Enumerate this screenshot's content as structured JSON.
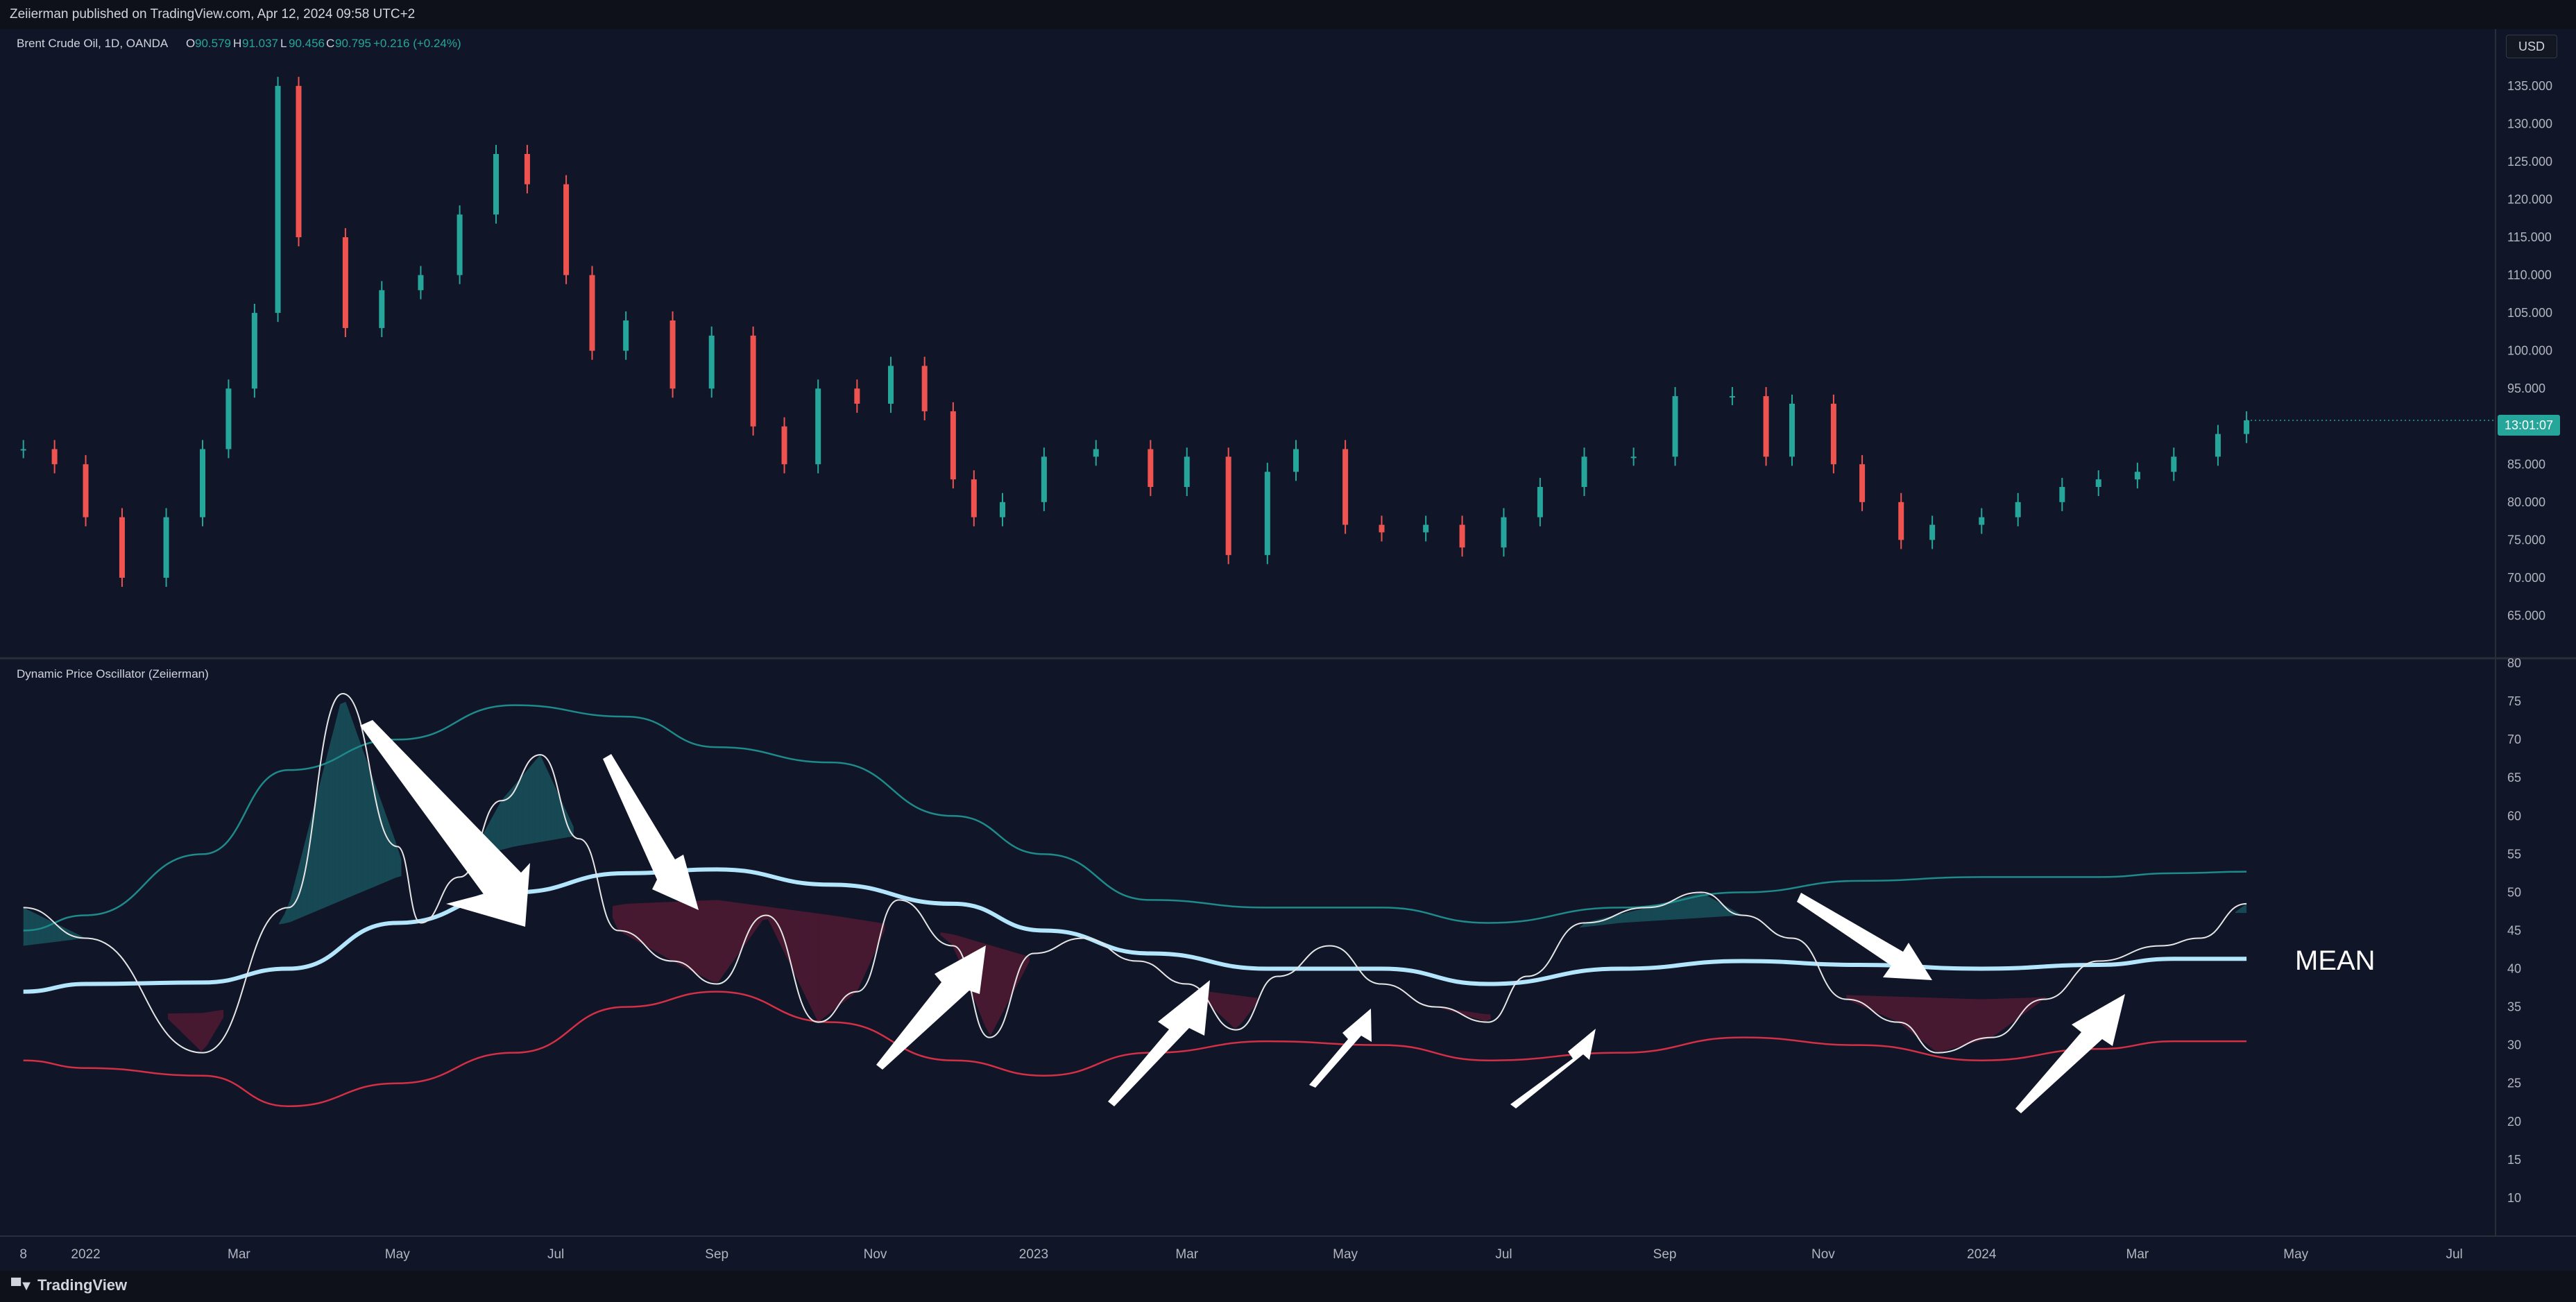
{
  "header": {
    "publisher_text": "Zeiierman published on TradingView.com, Apr 12, 2024 09:58 UTC+2"
  },
  "footer": {
    "brand": "TradingView"
  },
  "price_panel": {
    "symbol": "Brent Crude Oil, 1D, OANDA",
    "ohlc": [
      {
        "label": "O",
        "value": "90.579"
      },
      {
        "label": "H",
        "value": "91.037"
      },
      {
        "label": "L",
        "value": "90.456"
      },
      {
        "label": "C",
        "value": "90.795"
      }
    ],
    "change": "+0.216 (+0.24%)",
    "currency": "USD",
    "countdown": "13:01:07",
    "colors": {
      "up": "#26a69a",
      "down": "#ef5350",
      "countdown_bg": "#26a69a"
    }
  },
  "oscillator_panel": {
    "title": "Dynamic Price Oscillator (Zeiierman)",
    "mean_label": "MEAN",
    "colors": {
      "osc": "#e6e6e6",
      "mean": "#b3e5fc",
      "upper": "#1e8a8a",
      "lower": "#d32f45"
    }
  },
  "time_axis": [
    "8",
    "2022",
    "Mar",
    "May",
    "Jul",
    "Sep",
    "Nov",
    "2023",
    "Mar",
    "May",
    "Jul",
    "Sep",
    "Nov",
    "2024",
    "Mar",
    "May",
    "Jul"
  ],
  "chart_data": [
    {
      "type": "candlestick",
      "title": "Brent Crude Oil, 1D, OANDA",
      "ylim": [
        60,
        137
      ],
      "yticks": [
        "65.000",
        "70.000",
        "75.000",
        "80.000",
        "85.000",
        "90.000",
        "95.000",
        "100.000",
        "105.000",
        "110.000",
        "115.000",
        "120.000",
        "125.000",
        "130.000",
        "135.000"
      ],
      "x": [
        "2021-12-08",
        "2021-12-20",
        "2022-01-01",
        "2022-01-15",
        "2022-02-01",
        "2022-02-15",
        "2022-02-25",
        "2022-03-07",
        "2022-03-16",
        "2022-03-24",
        "2022-04-11",
        "2022-04-25",
        "2022-05-10",
        "2022-05-25",
        "2022-06-08",
        "2022-06-20",
        "2022-07-05",
        "2022-07-15",
        "2022-07-28",
        "2022-08-15",
        "2022-08-30",
        "2022-09-15",
        "2022-09-27",
        "2022-10-10",
        "2022-10-25",
        "2022-11-07",
        "2022-11-20",
        "2022-12-01",
        "2022-12-09",
        "2022-12-20",
        "2023-01-05",
        "2023-01-25",
        "2023-02-15",
        "2023-03-01",
        "2023-03-17",
        "2023-04-01",
        "2023-04-12",
        "2023-05-01",
        "2023-05-15",
        "2023-06-01",
        "2023-06-15",
        "2023-07-01",
        "2023-07-15",
        "2023-08-01",
        "2023-08-20",
        "2023-09-05",
        "2023-09-27",
        "2023-10-10",
        "2023-10-20",
        "2023-11-05",
        "2023-11-16",
        "2023-12-01",
        "2023-12-13",
        "2024-01-01",
        "2024-01-15",
        "2024-02-01",
        "2024-02-15",
        "2024-03-01",
        "2024-03-15",
        "2024-04-01",
        "2024-04-12"
      ],
      "values": [
        87,
        85,
        78,
        70,
        78,
        87,
        95,
        105,
        135,
        115,
        103,
        108,
        110,
        118,
        126,
        122,
        110,
        100,
        104,
        95,
        102,
        90,
        85,
        95,
        93,
        98,
        92,
        83,
        78,
        80,
        86,
        87,
        82,
        86,
        73,
        84,
        87,
        77,
        76,
        77,
        74,
        78,
        82,
        86,
        86,
        94,
        94,
        86,
        93,
        85,
        80,
        75,
        77,
        78,
        80,
        82,
        83,
        84,
        86,
        89,
        90.8
      ],
      "last": 90.795
    },
    {
      "type": "line",
      "title": "Dynamic Price Oscillator (Zeiierman)",
      "ylim": [
        5,
        80
      ],
      "yticks": [
        10,
        15,
        20,
        25,
        30,
        35,
        40,
        45,
        50,
        55,
        60,
        65,
        70,
        75,
        80
      ],
      "series": [
        {
          "name": "MEAN",
          "x": [
            "2021-12-08",
            "2022-01-01",
            "2022-02-15",
            "2022-03-20",
            "2022-05-01",
            "2022-06-15",
            "2022-07-28",
            "2022-09-01",
            "2022-10-15",
            "2022-12-01",
            "2023-01-05",
            "2023-02-15",
            "2023-04-01",
            "2023-05-15",
            "2023-06-25",
            "2023-08-15",
            "2023-10-01",
            "2023-11-15",
            "2024-01-01",
            "2024-02-15",
            "2024-03-15",
            "2024-04-12"
          ],
          "values": [
            37,
            38,
            38.2,
            40,
            46,
            50,
            52.5,
            53,
            51,
            48.5,
            45,
            42,
            40,
            40,
            38,
            40,
            41,
            40.5,
            40,
            40.5,
            41.3,
            41.3
          ]
        },
        {
          "name": "",
          "x": [
            "2021-12-08",
            "2022-01-01",
            "2022-02-15",
            "2022-03-20",
            "2022-05-01",
            "2022-06-15",
            "2022-07-28",
            "2022-09-01",
            "2022-10-15",
            "2022-12-01",
            "2023-01-05",
            "2023-02-15",
            "2023-04-01",
            "2023-05-15",
            "2023-06-25",
            "2023-08-15",
            "2023-10-01",
            "2023-11-15",
            "2024-01-01",
            "2024-02-15",
            "2024-03-15",
            "2024-04-12"
          ],
          "values": [
            45,
            47,
            55,
            66,
            70,
            74.5,
            73,
            69,
            67,
            60,
            55,
            49,
            48,
            48,
            46,
            48,
            50,
            51.5,
            52,
            52,
            52.5,
            52.7
          ]
        },
        {
          "name": "",
          "x": [
            "2021-12-08",
            "2022-01-01",
            "2022-02-15",
            "2022-03-20",
            "2022-05-01",
            "2022-06-15",
            "2022-07-28",
            "2022-09-01",
            "2022-10-15",
            "2022-12-01",
            "2023-01-05",
            "2023-02-15",
            "2023-04-01",
            "2023-05-15",
            "2023-06-25",
            "2023-08-15",
            "2023-10-01",
            "2023-11-15",
            "2024-01-01",
            "2024-02-15",
            "2024-03-15",
            "2024-04-12"
          ],
          "values": [
            28,
            27,
            26,
            22,
            25,
            29,
            35,
            37,
            33,
            28,
            26,
            29,
            30.5,
            30,
            28,
            29,
            31,
            30,
            28,
            29.5,
            30.5,
            30.5
          ]
        },
        {
          "name": "",
          "x": [
            "2021-12-08",
            "2022-01-01",
            "2022-02-15",
            "2022-03-20",
            "2022-04-10",
            "2022-05-01",
            "2022-05-10",
            "2022-05-25",
            "2022-06-10",
            "2022-06-25",
            "2022-07-10",
            "2022-07-25",
            "2022-08-15",
            "2022-09-01",
            "2022-09-20",
            "2022-10-10",
            "2022-10-25",
            "2022-11-10",
            "2022-12-01",
            "2022-12-15",
            "2023-01-01",
            "2023-01-20",
            "2023-02-10",
            "2023-03-01",
            "2023-03-20",
            "2023-04-05",
            "2023-04-25",
            "2023-05-15",
            "2023-06-05",
            "2023-06-25",
            "2023-07-10",
            "2023-08-01",
            "2023-08-25",
            "2023-09-15",
            "2023-10-01",
            "2023-10-20",
            "2023-11-10",
            "2023-11-30",
            "2023-12-15",
            "2024-01-05",
            "2024-01-25",
            "2024-02-15",
            "2024-03-10",
            "2024-03-25",
            "2024-04-12"
          ],
          "values": [
            48,
            44,
            29,
            48,
            76,
            56,
            46,
            52,
            62,
            68,
            57,
            45,
            41,
            38,
            47,
            33,
            37,
            49,
            43,
            31,
            42,
            44,
            41,
            38,
            32,
            39,
            43,
            38,
            35,
            33,
            39,
            46,
            48,
            50,
            47,
            44,
            36,
            33,
            29,
            31,
            36,
            41,
            43,
            44,
            48.5
          ]
        }
      ]
    }
  ]
}
